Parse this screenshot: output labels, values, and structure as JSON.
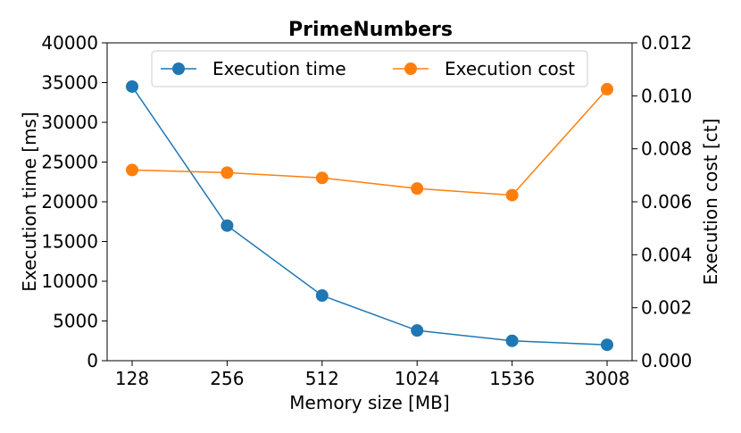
{
  "chart_data": {
    "type": "line",
    "title": "PrimeNumbers",
    "xlabel": "Memory size [MB]",
    "ylabel_left": "Execution time [ms]",
    "ylabel_right": "Execution cost [ct]",
    "categories": [
      "128",
      "256",
      "512",
      "1024",
      "1536",
      "3008"
    ],
    "ylim_left": [
      0,
      40000
    ],
    "ylim_right": [
      0,
      0.012
    ],
    "yticks_left": [
      "0",
      "5000",
      "10000",
      "15000",
      "20000",
      "25000",
      "30000",
      "35000",
      "40000"
    ],
    "yticks_right": [
      "0.000",
      "0.002",
      "0.004",
      "0.006",
      "0.008",
      "0.010",
      "0.012"
    ],
    "grid": false,
    "legend_position": "top-center",
    "series": [
      {
        "name": "Execution time",
        "axis": "left",
        "color": "#1f77b4",
        "values": [
          34500,
          17000,
          8200,
          3800,
          2500,
          2000
        ]
      },
      {
        "name": "Execution cost",
        "axis": "right",
        "color": "#ff7f0e",
        "values": [
          0.0072,
          0.0071,
          0.0069,
          0.0065,
          0.00625,
          0.01025
        ]
      }
    ]
  }
}
